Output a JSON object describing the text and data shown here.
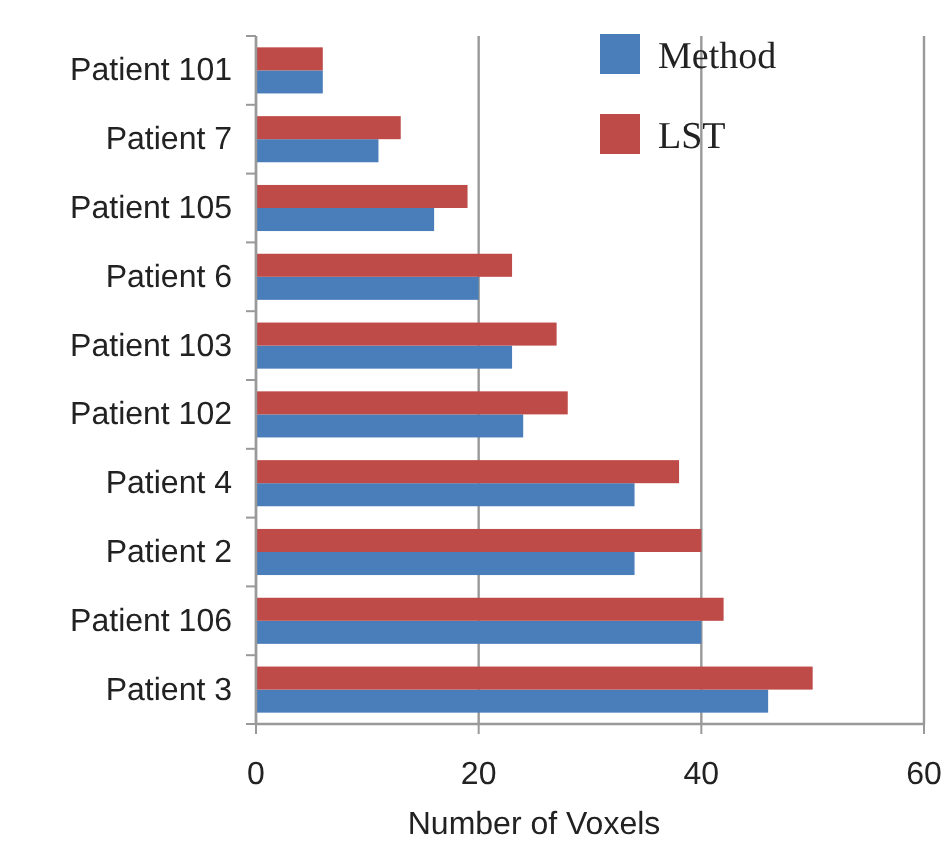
{
  "chart_data": {
    "type": "bar",
    "orientation": "horizontal",
    "xlabel": "Number of Voxels",
    "categories": [
      "Patient 101",
      "Patient 7",
      "Patient 105",
      "Patient 6",
      "Patient 103",
      "Patient 102",
      "Patient 4",
      "Patient 2",
      "Patient 106",
      "Patient 3"
    ],
    "series": [
      {
        "name": "Method",
        "color": "#4a7ebb",
        "values": [
          6,
          11,
          16,
          20,
          23,
          24,
          34,
          34,
          40,
          46
        ]
      },
      {
        "name": "LST",
        "color": "#be4b48",
        "values": [
          6,
          13,
          19,
          23,
          27,
          28,
          38,
          40,
          42,
          50
        ]
      }
    ],
    "xlim": [
      0,
      60
    ],
    "xticks": [
      0,
      20,
      40,
      60
    ],
    "grid": "x",
    "legend": "top right"
  }
}
